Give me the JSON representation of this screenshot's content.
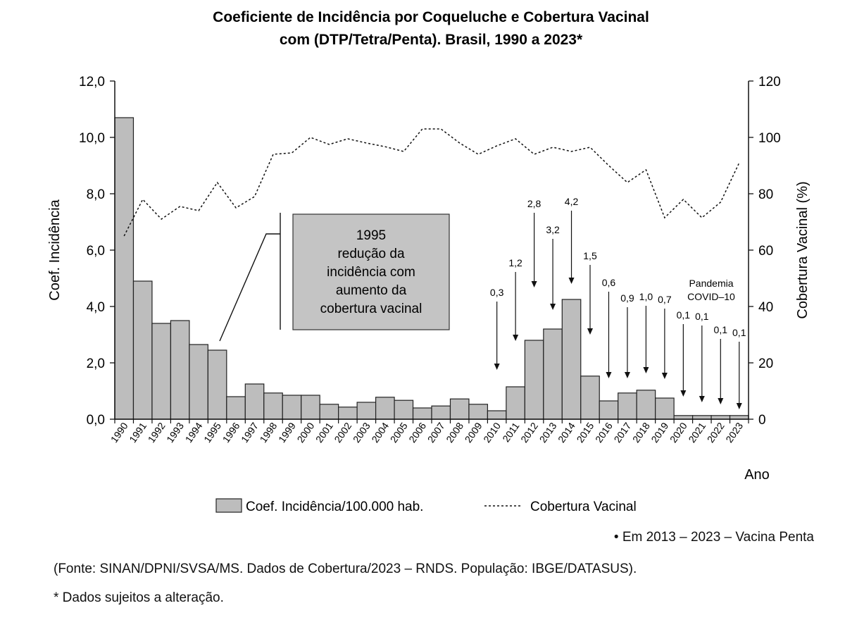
{
  "chart_data": {
    "type": "bar",
    "title_lines": [
      "Coeficiente de Incidência por Coqueluche e Cobertura Vacinal",
      "com (DTP/Tetra/Penta). Brasil, 1990 a 2023*"
    ],
    "categories": [
      "1990",
      "1991",
      "1992",
      "1993",
      "1994",
      "1995",
      "1996",
      "1997",
      "1998",
      "1999",
      "2000",
      "2001",
      "2002",
      "2003",
      "2004",
      "2005",
      "2006",
      "2007",
      "2008",
      "2009",
      "2010",
      "2011",
      "2012",
      "2013",
      "2014",
      "2015",
      "2016",
      "2017",
      "2018",
      "2019",
      "2020",
      "2021",
      "2022",
      "2023"
    ],
    "series": [
      {
        "name": "Coef. Incidência/100.000 hab.",
        "type": "bar",
        "axis": "left",
        "values": [
          10.7,
          4.9,
          3.4,
          3.5,
          2.65,
          2.45,
          0.8,
          1.25,
          0.93,
          0.85,
          0.85,
          0.53,
          0.43,
          0.6,
          0.78,
          0.67,
          0.4,
          0.47,
          0.72,
          0.53,
          0.3,
          1.15,
          2.8,
          3.2,
          4.25,
          1.53,
          0.65,
          0.93,
          1.03,
          0.75,
          0.13,
          0.13,
          0.13,
          0.13
        ]
      },
      {
        "name": "Cobertura Vacinal",
        "type": "line",
        "style": "dotted",
        "axis": "right",
        "values": [
          65,
          78,
          71,
          75.5,
          74,
          84,
          75,
          79,
          94,
          94.5,
          100,
          97.5,
          99.5,
          98,
          96.7,
          95,
          103,
          103,
          98,
          94,
          97,
          99.5,
          94,
          96.5,
          95,
          96.5,
          90,
          84,
          88.5,
          71.5,
          78,
          71.5,
          77,
          91
        ]
      }
    ],
    "ylabel": "Coef. Incidência",
    "y2label": "Cobertura Vacinal (%)",
    "xlabel": "Ano",
    "ylim": [
      0,
      12
    ],
    "y_ticks": [
      "0,0",
      "2,0",
      "4,0",
      "6,0",
      "8,0",
      "10,0",
      "12,0"
    ],
    "y2lim": [
      0,
      120
    ],
    "y2_ticks": [
      "0",
      "20",
      "40",
      "60",
      "80",
      "100",
      "120"
    ],
    "grid": false,
    "legend_position": "bottom",
    "annotations": {
      "callout_lines": [
        "1995",
        "redução da",
        "incidência com",
        "aumento da",
        "cobertura vacinal"
      ],
      "pandemic_lines": [
        "Pandemia",
        "COVID–10"
      ],
      "arrow_labels": [
        {
          "year": "2010",
          "label": "0,3"
        },
        {
          "year": "2011",
          "label": "1,2"
        },
        {
          "year": "2012",
          "label": "2,8"
        },
        {
          "year": "2013",
          "label": "3,2"
        },
        {
          "year": "2014",
          "label": "4,2"
        },
        {
          "year": "2015",
          "label": "1,5"
        },
        {
          "year": "2016",
          "label": "0,6"
        },
        {
          "year": "2017",
          "label": "0,9"
        },
        {
          "year": "2018",
          "label": "1,0"
        },
        {
          "year": "2019",
          "label": "0,7"
        },
        {
          "year": "2020",
          "label": "0,1"
        },
        {
          "year": "2021",
          "label": "0,1"
        },
        {
          "year": "2022",
          "label": "0,1"
        },
        {
          "year": "2023",
          "label": "0,1"
        }
      ]
    }
  },
  "colors": {
    "bar_fill": "#bdbdbd",
    "bar_stroke": "#222222",
    "line": "#111111",
    "callout_fill": "#c4c4c4"
  },
  "notes": {
    "penta": "• Em 2013 – 2023 – Vacina Penta",
    "fonte": "(Fonte: SINAN/DPNI/SVSA/MS. Dados de Cobertura/2023 – RNDS. População: IBGE/DATASUS).",
    "dados": "* Dados sujeitos a alteração."
  }
}
